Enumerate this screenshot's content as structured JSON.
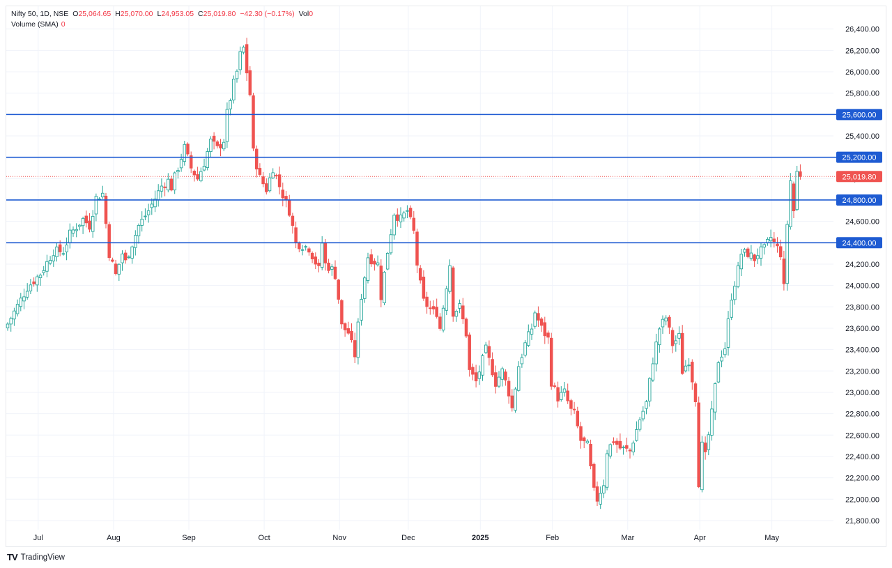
{
  "header": {
    "symbol": "Nifty 50, 1D, NSE",
    "open_label": "O",
    "open": "25,064.65",
    "high_label": "H",
    "high": "25,070.00",
    "low_label": "L",
    "low": "24,953.05",
    "close_label": "C",
    "close": "25,019.80",
    "change": "−42.30 (−0.17%)",
    "vol_label": "Vol",
    "vol": "0",
    "volume_sma_label": "Volume (SMA)",
    "volume_sma_value": "0"
  },
  "branding": {
    "logo": "TV",
    "name": "TradingView"
  },
  "colors": {
    "up": "#26a69a",
    "down": "#ef5350",
    "level": "#1e5bd2",
    "last": "#ef5350",
    "grid": "#f0f3fa"
  },
  "chart_data": {
    "type": "candlestick",
    "title": "Nifty 50, 1D, NSE",
    "y_ticks": [
      21800,
      22000,
      22200,
      22400,
      22600,
      22800,
      23000,
      23200,
      23400,
      23600,
      23800,
      24000,
      24200,
      24400,
      24600,
      24800,
      25000,
      25200,
      25400,
      25600,
      25800,
      26000,
      26200,
      26400
    ],
    "y_tick_labels": [
      "21,800.00",
      "22,000.00",
      "22,200.00",
      "22,400.00",
      "22,600.00",
      "22,800.00",
      "23,000.00",
      "23,200.00",
      "23,400.00",
      "23,600.00",
      "23,800.00",
      "24,000.00",
      "24,200.00",
      "24,400.00",
      "24,600.00",
      "24,800.00",
      "25,000.00",
      "25,200.00",
      "25,400.00",
      "25,600.00",
      "25,800.00",
      "26,000.00",
      "26,200.00",
      "26,400.00"
    ],
    "x_labels": [
      {
        "text": "Jul",
        "bold": false
      },
      {
        "text": "Aug",
        "bold": false
      },
      {
        "text": "Sep",
        "bold": false
      },
      {
        "text": "Oct",
        "bold": false
      },
      {
        "text": "Nov",
        "bold": false
      },
      {
        "text": "Dec",
        "bold": false
      },
      {
        "text": "2025",
        "bold": true
      },
      {
        "text": "Feb",
        "bold": false
      },
      {
        "text": "Mar",
        "bold": false
      },
      {
        "text": "Apr",
        "bold": false
      },
      {
        "text": "May",
        "bold": false
      }
    ],
    "levels": [
      {
        "value": 25600,
        "label": "25,600.00"
      },
      {
        "value": 25200,
        "label": "25,200.00"
      },
      {
        "value": 24800,
        "label": "24,800.00"
      },
      {
        "value": 24400,
        "label": "24,400.00"
      }
    ],
    "last_price": {
      "value": 25019.8,
      "label": "25,019.80"
    },
    "close_path": [
      [
        0,
        23640
      ],
      [
        6,
        23980
      ],
      [
        10,
        24110
      ],
      [
        14,
        24320
      ],
      [
        17,
        24320
      ],
      [
        19,
        24480
      ],
      [
        23,
        24620
      ],
      [
        25,
        24560
      ],
      [
        27,
        24820
      ],
      [
        29,
        24860
      ],
      [
        31,
        24300
      ],
      [
        33,
        24100
      ],
      [
        35,
        24300
      ],
      [
        36,
        24220
      ],
      [
        40,
        24560
      ],
      [
        43,
        24700
      ],
      [
        47,
        24930
      ],
      [
        49,
        24980
      ],
      [
        50,
        24920
      ],
      [
        54,
        25290
      ],
      [
        56,
        25100
      ],
      [
        58,
        25000
      ],
      [
        60,
        25150
      ],
      [
        62,
        25350
      ],
      [
        64,
        25280
      ],
      [
        66,
        25360
      ],
      [
        67,
        25610
      ],
      [
        69,
        25890
      ],
      [
        70,
        26000
      ],
      [
        71,
        26160
      ],
      [
        72,
        26220
      ],
      [
        73,
        26000
      ],
      [
        74,
        25790
      ],
      [
        75,
        25250
      ],
      [
        77,
        25010
      ],
      [
        79,
        24900
      ],
      [
        81,
        25100
      ],
      [
        83,
        24930
      ],
      [
        84,
        24850
      ],
      [
        86,
        24700
      ],
      [
        88,
        24400
      ],
      [
        92,
        24350
      ],
      [
        95,
        24150
      ],
      [
        96,
        24400
      ],
      [
        97,
        24200
      ],
      [
        99,
        24150
      ],
      [
        100,
        24100
      ],
      [
        101,
        23880
      ],
      [
        102,
        23620
      ],
      [
        104,
        23560
      ],
      [
        105,
        23450
      ],
      [
        106,
        23350
      ],
      [
        108,
        23900
      ],
      [
        110,
        24270
      ],
      [
        113,
        24200
      ],
      [
        114,
        23900
      ],
      [
        116,
        24320
      ],
      [
        118,
        24680
      ],
      [
        120,
        24620
      ],
      [
        122,
        24700
      ],
      [
        124,
        24500
      ],
      [
        125,
        24200
      ],
      [
        126,
        24010
      ],
      [
        127,
        23850
      ],
      [
        130,
        23750
      ],
      [
        131,
        23750
      ],
      [
        132,
        23600
      ],
      [
        133,
        23800
      ],
      [
        135,
        24200
      ],
      [
        136,
        23750
      ],
      [
        138,
        23800
      ],
      [
        140,
        23550
      ],
      [
        141,
        23200
      ],
      [
        143,
        23100
      ],
      [
        145,
        23300
      ],
      [
        146,
        23400
      ],
      [
        148,
        23200
      ],
      [
        149,
        23090
      ],
      [
        151,
        23200
      ],
      [
        153,
        23000
      ],
      [
        154,
        22850
      ],
      [
        156,
        23250
      ],
      [
        158,
        23450
      ],
      [
        160,
        23600
      ],
      [
        161,
        23750
      ],
      [
        163,
        23600
      ],
      [
        165,
        23500
      ],
      [
        166,
        23100
      ],
      [
        168,
        22950
      ],
      [
        170,
        23000
      ],
      [
        172,
        22830
      ],
      [
        173,
        22800
      ],
      [
        175,
        22550
      ],
      [
        177,
        22500
      ],
      [
        179,
        22070
      ],
      [
        180,
        22000
      ],
      [
        182,
        22150
      ],
      [
        183,
        22450
      ],
      [
        185,
        22550
      ],
      [
        187,
        22480
      ],
      [
        190,
        22450
      ],
      [
        191,
        22550
      ],
      [
        193,
        22750
      ],
      [
        195,
        22900
      ],
      [
        197,
        23300
      ],
      [
        199,
        23600
      ],
      [
        201,
        23700
      ],
      [
        203,
        23450
      ],
      [
        205,
        23520
      ],
      [
        206,
        23200
      ],
      [
        208,
        23300
      ],
      [
        210,
        22950
      ],
      [
        211,
        22160
      ],
      [
        212,
        22500
      ],
      [
        213,
        22400
      ],
      [
        215,
        22800
      ],
      [
        217,
        23300
      ],
      [
        219,
        23420
      ],
      [
        221,
        23900
      ],
      [
        223,
        24150
      ],
      [
        224,
        24300
      ],
      [
        226,
        24300
      ],
      [
        228,
        24250
      ],
      [
        229,
        24300
      ],
      [
        231,
        24340
      ],
      [
        233,
        24450
      ],
      [
        234,
        24400
      ],
      [
        236,
        24300
      ],
      [
        237,
        23980
      ],
      [
        238,
        24580
      ],
      [
        239,
        24980
      ],
      [
        240,
        24700
      ],
      [
        241,
        25060
      ],
      [
        242,
        25019.8
      ]
    ]
  }
}
